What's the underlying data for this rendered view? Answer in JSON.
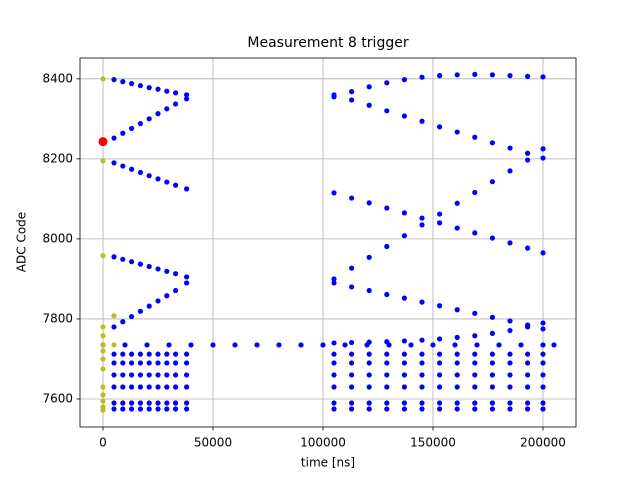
{
  "chart_data": {
    "type": "scatter",
    "title": "Measurement 8 trigger",
    "x_label": "time [ns]",
    "y_label": "ADC Code",
    "xlim": [
      -10455,
      215000
    ],
    "ylim": [
      7530,
      8452
    ],
    "xticks": [
      0,
      50000,
      100000,
      150000,
      200000
    ],
    "yticks": [
      7600,
      7800,
      8000,
      8200,
      8400
    ],
    "grid": true,
    "series": [
      {
        "color": "#0000ff",
        "x": [
          0,
          10000,
          20000,
          30000,
          40000,
          50000,
          60000,
          70000,
          80000,
          90000,
          100000,
          110000,
          120000,
          130000,
          140000,
          150000,
          160000,
          170000,
          180000,
          190000,
          200000,
          205000
        ],
        "values": [
          7735,
          7735,
          7735,
          7735,
          7735,
          7735,
          7735,
          7735,
          7735,
          7735,
          7735,
          7735,
          7735,
          7735,
          7735,
          7735,
          7735,
          7735,
          7735,
          7735,
          7735,
          7735
        ]
      },
      {
        "color": "#0000ff",
        "x": [
          5000,
          9000,
          13000,
          17000,
          21000,
          25000,
          29000,
          33000,
          38000
        ],
        "values": [
          8398,
          8393,
          8388,
          8383,
          8378,
          8374,
          8369,
          8365,
          8360
        ]
      },
      {
        "color": "#0000ff",
        "x": [
          5000,
          9000,
          13000,
          17000,
          21000,
          25000,
          29000,
          33000,
          38000
        ],
        "values": [
          8252,
          8264,
          8276,
          8288,
          8300,
          8313,
          8325,
          8337,
          8350
        ]
      },
      {
        "color": "#0000ff",
        "x": [
          5000,
          9000,
          13000,
          17000,
          21000,
          25000,
          29000,
          33000,
          38000
        ],
        "values": [
          8190,
          8182,
          8174,
          8166,
          8158,
          8150,
          8142,
          8134,
          8125
        ]
      },
      {
        "color": "#0000ff",
        "x": [
          5000,
          9000,
          13000,
          17000,
          21000,
          25000,
          29000,
          33000,
          38000
        ],
        "values": [
          7955,
          7949,
          7943,
          7937,
          7931,
          7925,
          7919,
          7913,
          7905
        ]
      },
      {
        "color": "#0000ff",
        "x": [
          5000,
          9000,
          13000,
          17000,
          21000,
          25000,
          29000,
          33000,
          38000
        ],
        "values": [
          7780,
          7793,
          7806,
          7819,
          7832,
          7845,
          7858,
          7871,
          7890
        ]
      },
      {
        "color": "#0000ff",
        "x": [
          5000,
          9000,
          13000,
          17000,
          21000,
          25000,
          29000,
          33000,
          38000
        ],
        "values": [
          7712,
          7712,
          7712,
          7712,
          7712,
          7712,
          7712,
          7712,
          7712
        ]
      },
      {
        "color": "#0000ff",
        "x": [
          5000,
          9000,
          13000,
          17000,
          21000,
          25000,
          29000,
          33000,
          38000
        ],
        "values": [
          7690,
          7690,
          7690,
          7690,
          7690,
          7690,
          7690,
          7690,
          7690
        ]
      },
      {
        "color": "#0000ff",
        "x": [
          5000,
          9000,
          13000,
          17000,
          21000,
          25000,
          29000,
          33000,
          38000
        ],
        "values": [
          7660,
          7660,
          7660,
          7660,
          7660,
          7660,
          7660,
          7660,
          7660
        ]
      },
      {
        "color": "#0000ff",
        "x": [
          5000,
          9000,
          13000,
          17000,
          21000,
          25000,
          29000,
          33000,
          38000
        ],
        "values": [
          7630,
          7630,
          7630,
          7630,
          7630,
          7630,
          7630,
          7630,
          7630
        ]
      },
      {
        "color": "#0000ff",
        "x": [
          5000,
          9000,
          13000,
          17000,
          21000,
          25000,
          29000,
          33000,
          38000
        ],
        "values": [
          7590,
          7590,
          7590,
          7590,
          7590,
          7590,
          7590,
          7590,
          7590
        ]
      },
      {
        "color": "#0000ff",
        "x": [
          5000,
          9000,
          13000,
          17000,
          21000,
          25000,
          29000,
          33000,
          38000
        ],
        "values": [
          7575,
          7575,
          7575,
          7575,
          7575,
          7575,
          7575,
          7575,
          7575
        ]
      },
      {
        "color": "#0000ff",
        "x": [
          105000,
          113000,
          121000,
          129000,
          137000,
          145000,
          153000,
          161000,
          169000,
          177000,
          185000,
          193000,
          200000
        ],
        "values": [
          8355,
          8368,
          8380,
          8390,
          8398,
          8404,
          8408,
          8410,
          8411,
          8410,
          8408,
          8406,
          8405
        ]
      },
      {
        "color": "#0000ff",
        "x": [
          105000,
          113000,
          121000,
          129000,
          137000,
          145000,
          153000,
          161000,
          169000,
          177000,
          185000,
          193000,
          200000
        ],
        "values": [
          8360,
          8347,
          8334,
          8320,
          8307,
          8294,
          8280,
          8267,
          8254,
          8240,
          8227,
          8214,
          8202
        ]
      },
      {
        "color": "#0000ff",
        "x": [
          105000,
          113000,
          121000,
          129000,
          137000,
          145000,
          153000,
          161000,
          169000,
          177000,
          185000,
          193000,
          200000
        ],
        "values": [
          7900,
          7927,
          7954,
          7981,
          8008,
          8035,
          8062,
          8089,
          8116,
          8143,
          8170,
          8197,
          8225
        ]
      },
      {
        "color": "#0000ff",
        "x": [
          105000,
          113000,
          121000,
          129000,
          137000,
          145000,
          153000,
          161000,
          169000,
          177000,
          185000,
          193000,
          200000
        ],
        "values": [
          8115,
          8102,
          8090,
          8077,
          8065,
          8052,
          8040,
          8027,
          8015,
          8002,
          7990,
          7977,
          7965
        ]
      },
      {
        "color": "#0000ff",
        "x": [
          105000,
          113000,
          121000,
          129000,
          137000,
          145000,
          153000,
          161000,
          169000,
          177000,
          185000,
          193000,
          200000
        ],
        "values": [
          7890,
          7880,
          7871,
          7861,
          7852,
          7842,
          7833,
          7823,
          7814,
          7804,
          7795,
          7785,
          7775
        ]
      },
      {
        "color": "#0000ff",
        "x": [
          105000,
          113000,
          121000,
          129000,
          137000,
          145000,
          153000,
          161000,
          169000,
          177000,
          185000,
          193000,
          200000
        ],
        "values": [
          7740,
          7741,
          7742,
          7743,
          7745,
          7747,
          7750,
          7754,
          7758,
          7764,
          7771,
          7780,
          7790
        ]
      },
      {
        "color": "#0000ff",
        "x": [
          105000,
          113000,
          121000,
          129000,
          137000,
          145000,
          153000,
          161000,
          169000,
          177000,
          185000,
          193000,
          200000
        ],
        "values": [
          7712,
          7712,
          7712,
          7712,
          7712,
          7712,
          7712,
          7712,
          7712,
          7712,
          7712,
          7712,
          7712
        ]
      },
      {
        "color": "#0000ff",
        "x": [
          105000,
          113000,
          121000,
          129000,
          137000,
          145000,
          153000,
          161000,
          169000,
          177000,
          185000,
          193000,
          200000
        ],
        "values": [
          7690,
          7690,
          7690,
          7690,
          7690,
          7690,
          7690,
          7690,
          7690,
          7690,
          7690,
          7690,
          7690
        ]
      },
      {
        "color": "#0000ff",
        "x": [
          105000,
          113000,
          121000,
          129000,
          137000,
          145000,
          153000,
          161000,
          169000,
          177000,
          185000,
          193000,
          200000
        ],
        "values": [
          7660,
          7660,
          7660,
          7660,
          7660,
          7660,
          7660,
          7660,
          7660,
          7660,
          7660,
          7660,
          7660
        ]
      },
      {
        "color": "#0000ff",
        "x": [
          105000,
          113000,
          121000,
          129000,
          137000,
          145000,
          153000,
          161000,
          169000,
          177000,
          185000,
          193000,
          200000
        ],
        "values": [
          7630,
          7630,
          7630,
          7630,
          7630,
          7630,
          7630,
          7630,
          7630,
          7630,
          7630,
          7630,
          7630
        ]
      },
      {
        "color": "#0000ff",
        "x": [
          105000,
          113000,
          121000,
          129000,
          137000,
          145000,
          153000,
          161000,
          169000,
          177000,
          185000,
          193000,
          200000
        ],
        "values": [
          7590,
          7590,
          7590,
          7590,
          7590,
          7590,
          7590,
          7590,
          7590,
          7590,
          7590,
          7590,
          7590
        ]
      },
      {
        "color": "#0000ff",
        "x": [
          105000,
          113000,
          121000,
          129000,
          137000,
          145000,
          153000,
          161000,
          169000,
          177000,
          185000,
          193000,
          200000
        ],
        "values": [
          7575,
          7575,
          7575,
          7575,
          7575,
          7575,
          7575,
          7575,
          7575,
          7575,
          7575,
          7575,
          7575
        ]
      },
      {
        "color": "#bcbd22",
        "x": [
          0,
          0,
          0,
          0,
          0,
          0,
          0,
          0,
          0,
          0,
          0,
          0,
          0,
          0,
          5000,
          5000
        ],
        "values": [
          8400,
          8195,
          7958,
          7780,
          7758,
          7735,
          7720,
          7700,
          7675,
          7630,
          7610,
          7595,
          7580,
          7572,
          7808,
          7735
        ]
      },
      {
        "color": "#ff0000",
        "x": [
          0
        ],
        "values": [
          8243
        ]
      }
    ]
  }
}
